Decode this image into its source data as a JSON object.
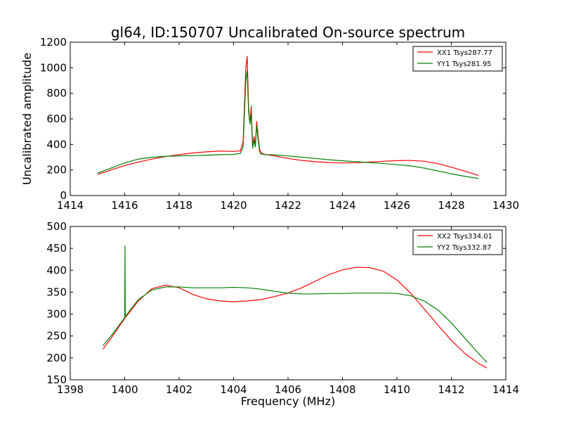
{
  "figure_title": "gl64, ID:150707 Uncalibrated On-source spectrum",
  "colors": {
    "red": "#ff0000",
    "green": "#007f00",
    "axes": "#000000"
  },
  "chart_data": [
    {
      "type": "line",
      "title": "gl64, ID:150707 Uncalibrated On-source spectrum",
      "xlabel": "",
      "ylabel": "Uncalibrated amplitude",
      "xlim": [
        1414,
        1430
      ],
      "ylim": [
        0,
        1200
      ],
      "xticks": [
        1414,
        1416,
        1418,
        1420,
        1422,
        1424,
        1426,
        1428,
        1430
      ],
      "yticks": [
        0,
        200,
        400,
        600,
        800,
        1000,
        1200
      ],
      "legend_position": "top-right",
      "series": [
        {
          "name": "XX1 Tsys287.77",
          "color": "#ff0000",
          "x": [
            1415.0,
            1415.5,
            1416.0,
            1416.5,
            1417.0,
            1417.5,
            1418.0,
            1418.5,
            1419.0,
            1419.5,
            1420.0,
            1420.25,
            1420.35,
            1420.45,
            1420.5,
            1420.55,
            1420.6,
            1420.65,
            1420.7,
            1420.75,
            1420.8,
            1420.85,
            1420.9,
            1420.95,
            1421.0,
            1421.1,
            1421.2,
            1421.5,
            1422.0,
            1422.5,
            1423.0,
            1423.5,
            1424.0,
            1424.5,
            1425.0,
            1425.5,
            1426.0,
            1426.5,
            1427.0,
            1427.5,
            1428.0,
            1428.5,
            1429.0
          ],
          "values": [
            165,
            200,
            235,
            262,
            285,
            305,
            320,
            333,
            342,
            348,
            345,
            350,
            420,
            1000,
            1090,
            700,
            560,
            700,
            380,
            460,
            400,
            580,
            470,
            370,
            335,
            325,
            320,
            310,
            290,
            275,
            265,
            258,
            255,
            257,
            262,
            268,
            273,
            275,
            268,
            250,
            222,
            190,
            157
          ]
        },
        {
          "name": "YY1 Tsys281.95",
          "color": "#007f00",
          "x": [
            1415.0,
            1415.5,
            1416.0,
            1416.5,
            1417.0,
            1417.5,
            1418.0,
            1418.5,
            1419.0,
            1419.5,
            1420.0,
            1420.25,
            1420.35,
            1420.45,
            1420.5,
            1420.55,
            1420.6,
            1420.65,
            1420.7,
            1420.75,
            1420.8,
            1420.85,
            1420.9,
            1420.95,
            1421.0,
            1421.1,
            1421.2,
            1421.5,
            1422.0,
            1422.5,
            1423.0,
            1423.5,
            1424.0,
            1424.5,
            1425.0,
            1425.5,
            1426.0,
            1426.5,
            1427.0,
            1427.5,
            1428.0,
            1428.5,
            1429.0
          ],
          "values": [
            175,
            215,
            255,
            285,
            300,
            307,
            310,
            312,
            315,
            320,
            322,
            330,
            380,
            900,
            975,
            660,
            560,
            640,
            370,
            430,
            380,
            550,
            440,
            350,
            325,
            322,
            320,
            318,
            310,
            300,
            290,
            280,
            272,
            265,
            258,
            250,
            242,
            232,
            215,
            192,
            170,
            150,
            133
          ]
        }
      ]
    },
    {
      "type": "line",
      "title": "",
      "xlabel": "Frequency (MHz)",
      "ylabel": "",
      "xlim": [
        1398,
        1414
      ],
      "ylim": [
        150,
        500
      ],
      "xticks": [
        1398,
        1400,
        1402,
        1404,
        1406,
        1408,
        1410,
        1412,
        1414
      ],
      "yticks": [
        150,
        200,
        250,
        300,
        350,
        400,
        450,
        500
      ],
      "legend_position": "top-right",
      "series": [
        {
          "name": "XX2 Tsys334.01",
          "color": "#ff0000",
          "x": [
            1399.2,
            1399.5,
            1400.0,
            1400.5,
            1401.0,
            1401.5,
            1402.0,
            1402.5,
            1403.0,
            1403.5,
            1404.0,
            1404.5,
            1405.0,
            1405.5,
            1406.0,
            1406.5,
            1407.0,
            1407.5,
            1408.0,
            1408.5,
            1409.0,
            1409.5,
            1410.0,
            1410.5,
            1411.0,
            1411.5,
            1412.0,
            1412.5,
            1413.0,
            1413.3
          ],
          "values": [
            220,
            245,
            290,
            330,
            358,
            366,
            360,
            345,
            335,
            330,
            328,
            330,
            333,
            340,
            348,
            360,
            375,
            390,
            401,
            407,
            406,
            398,
            378,
            348,
            312,
            275,
            240,
            210,
            187,
            177
          ]
        },
        {
          "name": "YY2 Tsys332.87",
          "color": "#007f00",
          "x": [
            1399.2,
            1399.5,
            1400.0,
            1400.01,
            1400.02,
            1400.03,
            1400.05,
            1400.5,
            1401.0,
            1401.5,
            1402.0,
            1402.5,
            1403.0,
            1403.5,
            1404.0,
            1404.5,
            1405.0,
            1405.5,
            1406.0,
            1406.5,
            1407.0,
            1407.5,
            1408.0,
            1408.5,
            1409.0,
            1409.5,
            1410.0,
            1410.5,
            1411.0,
            1411.5,
            1412.0,
            1412.5,
            1413.0,
            1413.3
          ],
          "values": [
            228,
            250,
            292,
            455,
            300,
            296,
            297,
            333,
            355,
            362,
            362,
            360,
            360,
            360,
            361,
            360,
            357,
            352,
            348,
            346,
            346,
            347,
            347,
            348,
            348,
            348,
            347,
            342,
            330,
            310,
            280,
            245,
            210,
            190
          ]
        }
      ]
    }
  ]
}
